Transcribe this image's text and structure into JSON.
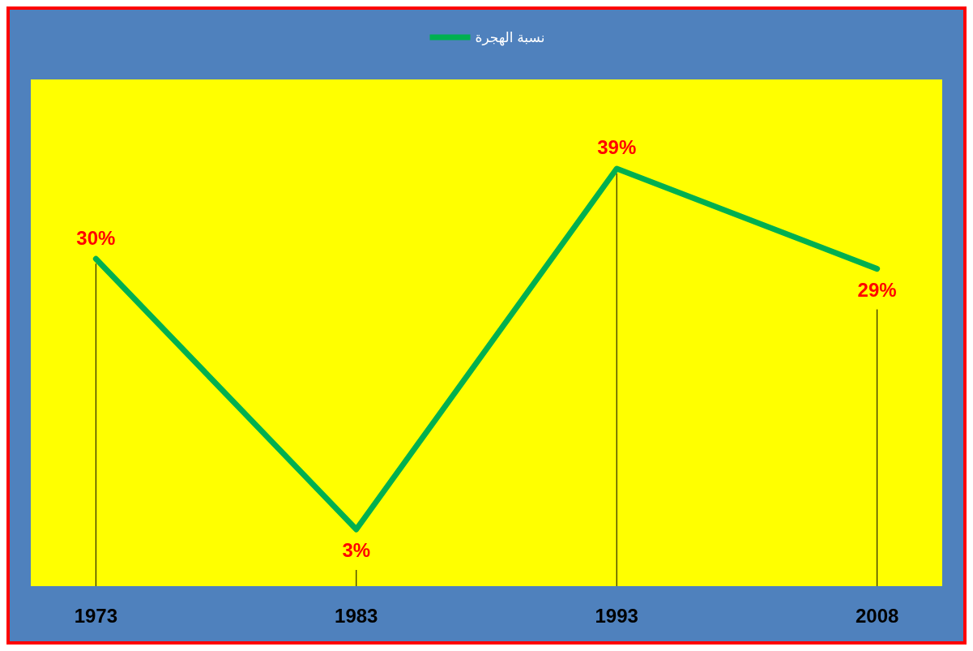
{
  "chart_data": {
    "type": "line",
    "categories": [
      "1973",
      "1983",
      "1993",
      "2008"
    ],
    "series": [
      {
        "name": "نسبة الهجرة",
        "color": "#00b050",
        "values": [
          30,
          3,
          39,
          29
        ],
        "value_labels": [
          "30%",
          "3%",
          "39%",
          "29%"
        ]
      }
    ],
    "legend": "top",
    "grid": "x",
    "line_style": "solid"
  }
}
